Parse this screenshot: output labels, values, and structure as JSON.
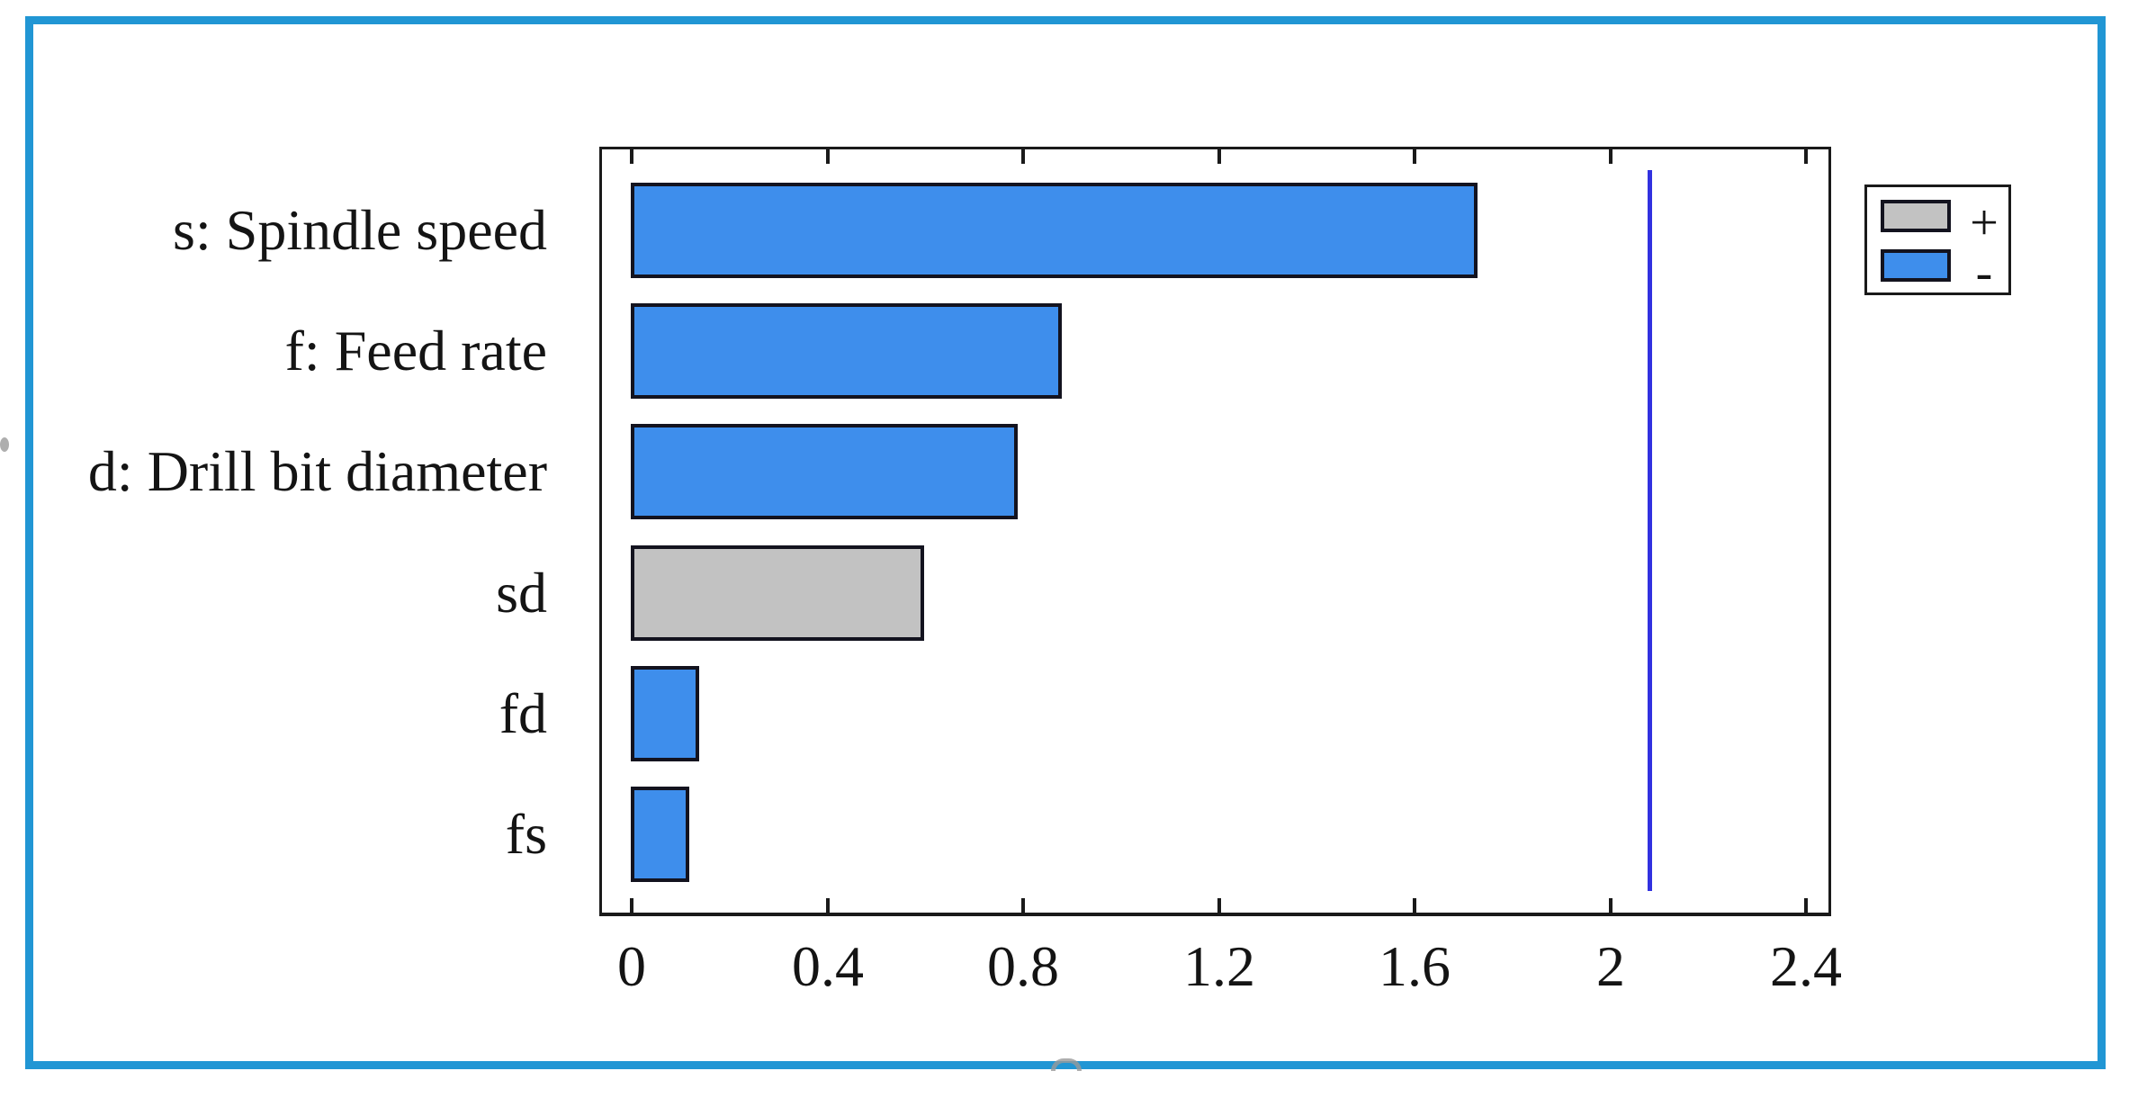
{
  "chart_data": {
    "type": "bar",
    "orientation": "horizontal",
    "title": "",
    "xlabel": "",
    "ylabel": "",
    "categories": [
      "s: Spindle speed",
      "f: Feed rate",
      "d: Drill bit diameter",
      "sd",
      "fd",
      "fs"
    ],
    "values": [
      1.73,
      0.88,
      0.79,
      0.6,
      0.14,
      0.12
    ],
    "signs": [
      "-",
      "-",
      "-",
      "+",
      "-",
      "-"
    ],
    "reference_line_x": 2.08,
    "x_tick_values": [
      0,
      0.4,
      0.8,
      1.2,
      1.6,
      2,
      2.4
    ],
    "x_tick_labels": [
      "0",
      "0.4",
      "0.8",
      "1.2",
      "1.6",
      "2",
      "2.4"
    ],
    "xlim": [
      -0.07,
      2.45
    ],
    "grid": false,
    "legend": {
      "position": "outside-top-right",
      "entries": [
        {
          "label": "+",
          "color": "#C2C2C2"
        },
        {
          "label": "-",
          "color": "#3E8EEC"
        }
      ]
    }
  },
  "colors": {
    "bar_negative": "#3E8EEC",
    "bar_positive": "#C2C2C2",
    "bar_border": "#13131F",
    "axis": "#1A1A1A",
    "reference_line": "#3232E0",
    "frame_border": "#2196D4",
    "text": "#141414",
    "background": "#FFFFFF"
  }
}
